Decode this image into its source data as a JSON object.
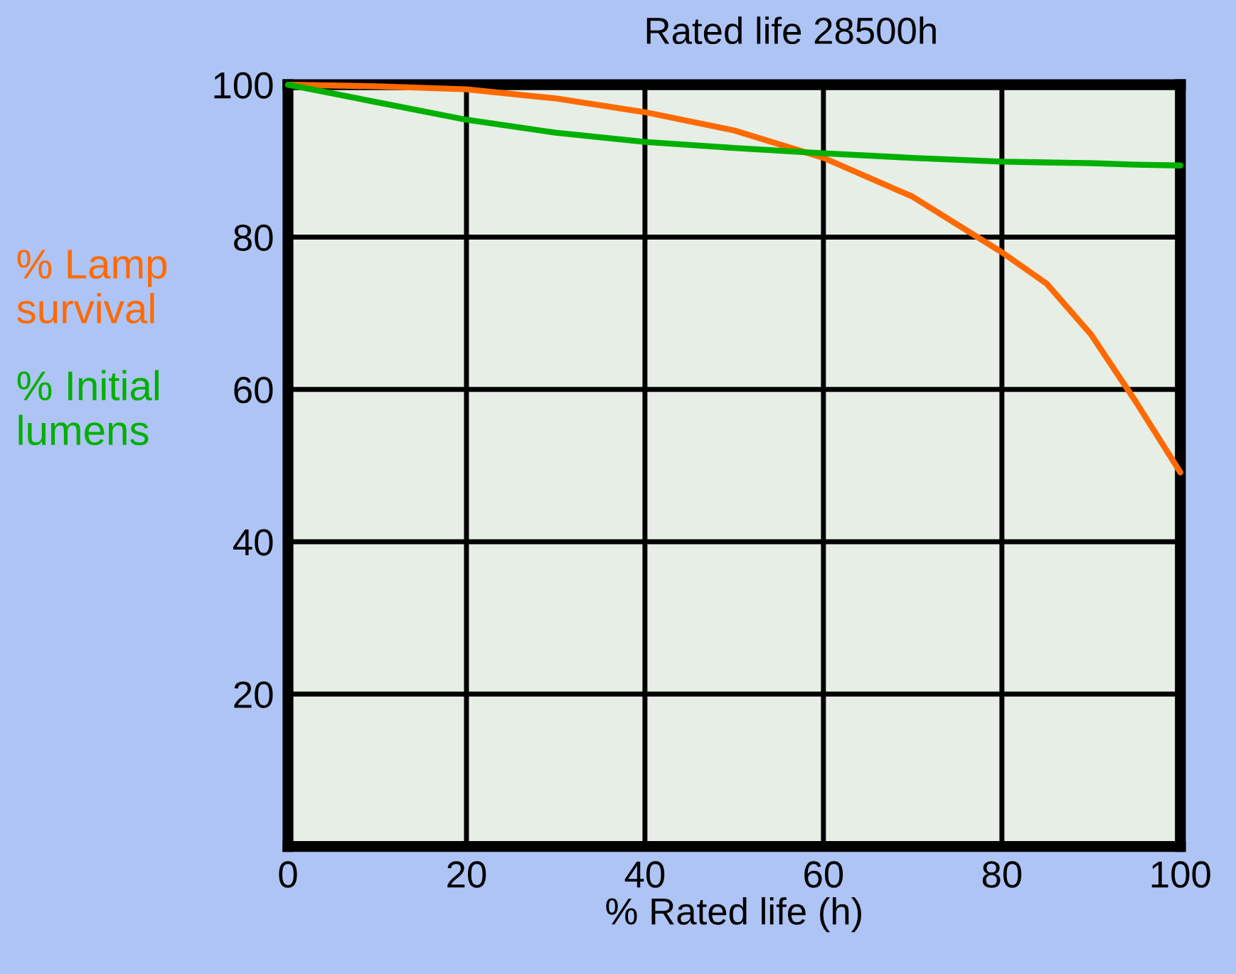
{
  "chart_data": {
    "type": "line",
    "title": "Rated life 28500h",
    "xlabel": "% Rated life (h)",
    "x": [
      0,
      10,
      20,
      30,
      40,
      50,
      60,
      70,
      80,
      85,
      90,
      95,
      100
    ],
    "series": [
      {
        "name": "% Lamp survival",
        "color": "#ff6a00",
        "values": [
          100,
          99.8,
          99.4,
          98.2,
          96.4,
          94,
          90.4,
          85.3,
          78,
          73.9,
          67.2,
          58.4,
          49.1
        ]
      },
      {
        "name": "% Initial lumens",
        "color": "#00b000",
        "values": [
          100,
          97.7,
          95.4,
          93.7,
          92.5,
          91.7,
          91,
          90.4,
          89.9,
          89.8,
          89.7,
          89.5,
          89.4
        ]
      }
    ],
    "xlim": [
      0,
      100
    ],
    "xticks": [
      0,
      20,
      40,
      60,
      80,
      100
    ],
    "ylim": [
      0,
      100
    ],
    "yticks": [
      20,
      40,
      60,
      80,
      100
    ],
    "grid": true,
    "legend": "left",
    "marker": "none",
    "line_style": "solid"
  }
}
